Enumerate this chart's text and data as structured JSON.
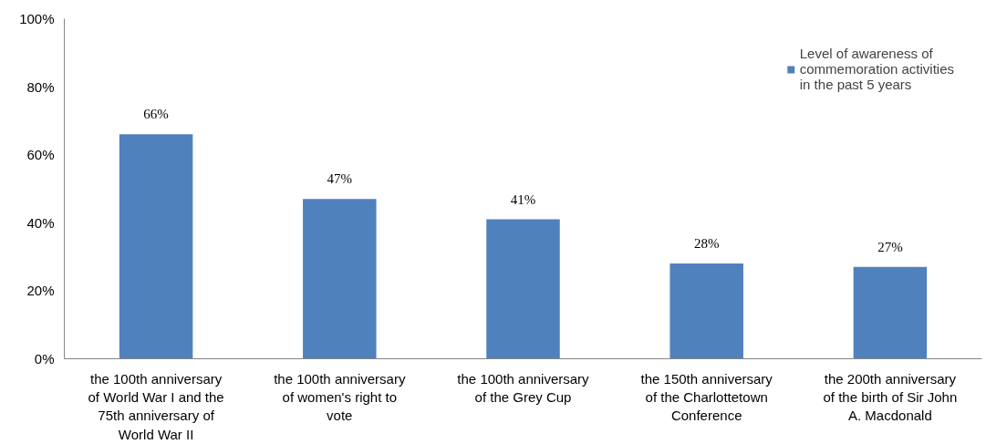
{
  "chart_data": {
    "type": "bar",
    "categories": [
      "the 100th anniversary\nof World War I and the\n75th anniversary of\nWorld War II",
      "the 100th anniversary\nof women's right to\nvote",
      "the 100th anniversary\nof the Grey Cup",
      "the 150th anniversary\nof the Charlottetown\nConference",
      "the 200th anniversary\nof the birth of Sir John\nA. Macdonald"
    ],
    "series": [
      {
        "name": "Level of awareness of\ncommemoration activities\nin the past 5 years",
        "color": "#4f81bd",
        "values": [
          66,
          47,
          41,
          28,
          27
        ]
      }
    ],
    "ylim": [
      0,
      100
    ],
    "yticks": [
      {
        "value": 0,
        "label": "0%"
      },
      {
        "value": 20,
        "label": "20%"
      },
      {
        "value": 40,
        "label": "40%"
      },
      {
        "value": 60,
        "label": "60%"
      },
      {
        "value": 80,
        "label": "80%"
      },
      {
        "value": 100,
        "label": "100%"
      }
    ],
    "value_labels": [
      "66%",
      "47%",
      "41%",
      "28%",
      "27%"
    ],
    "legend": "top right",
    "grid": false
  }
}
